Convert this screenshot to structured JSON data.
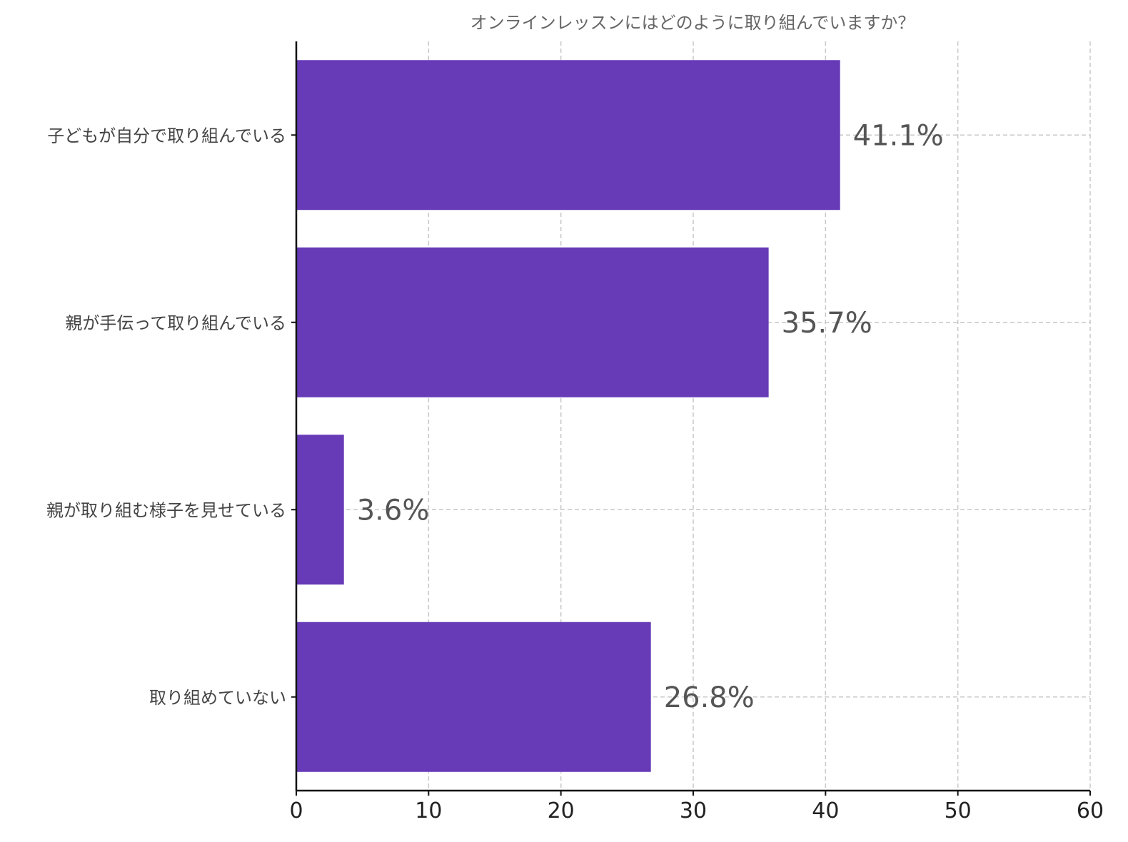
{
  "chart_data": {
    "type": "bar",
    "orientation": "horizontal",
    "title": "オンラインレッスンにはどのように取り組んでいますか？",
    "categories": [
      "子どもが自分で取り組んでいる",
      "親が手伝って取り組んでいる",
      "親が取り組む様子を見せている",
      "取り組めていない"
    ],
    "values": [
      41.1,
      35.7,
      3.6,
      26.8
    ],
    "data_labels": [
      "41.1%",
      "35.7%",
      "3.6%",
      "26.8%"
    ],
    "xlim": [
      0,
      60
    ],
    "xticks": [
      0,
      10,
      20,
      30,
      40,
      50,
      60
    ],
    "xtick_labels": [
      "0",
      "10",
      "20",
      "30",
      "40",
      "50",
      "60"
    ],
    "grid": true,
    "bar_color": "#673AB7"
  }
}
